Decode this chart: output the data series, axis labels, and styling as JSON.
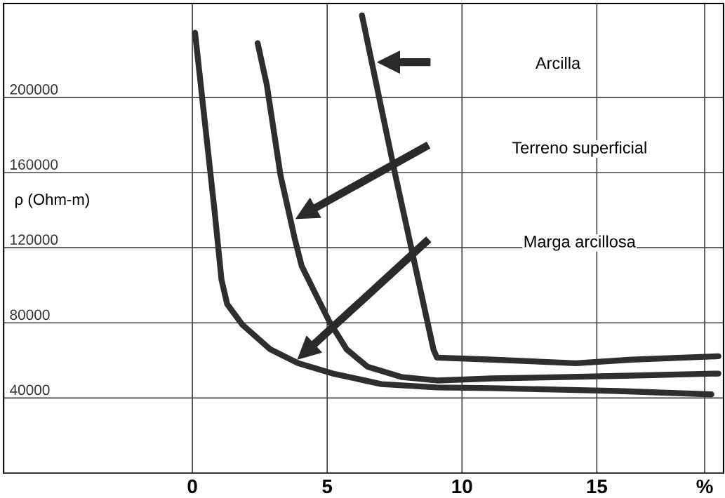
{
  "chart_data": {
    "type": "line",
    "ylabel": "ρ (Ohm-m)",
    "xlim": [
      -7,
      19.7
    ],
    "ylim": [
      0,
      250000
    ],
    "xticks": [
      0,
      5,
      10,
      15,
      {
        "value": 19,
        "label": "%"
      }
    ],
    "yticks": [
      40000,
      80000,
      120000,
      160000,
      200000
    ],
    "grid": true,
    "legend": false,
    "marker": "none",
    "line_style": "solid",
    "series": [
      {
        "color": "#2e2e2e",
        "x": [
          0.1,
          0.82,
          1.08,
          1.29,
          1.86,
          2.89,
          3.92,
          5.21,
          7.01,
          9.07,
          11.13,
          13.71,
          15.79,
          19.25
        ],
        "values": [
          234400,
          140000,
          103000,
          90000,
          78900,
          65900,
          58500,
          53000,
          47400,
          45600,
          45200,
          44400,
          43700,
          41900
        ]
      },
      {
        "color": "#2e2e2e",
        "x": [
          2.42,
          2.76,
          3.27,
          3.79,
          4.05,
          4.56,
          5.08,
          5.72,
          6.49,
          7.78,
          9.07,
          11.13,
          13.71,
          16.29,
          19.51
        ],
        "values": [
          228900,
          206700,
          158500,
          125200,
          110400,
          95600,
          80700,
          65900,
          56700,
          51100,
          49300,
          50400,
          51100,
          51900,
          53000
        ]
      },
      {
        "color": "#2e2e2e",
        "x": [
          6.29,
          7.53,
          8.94,
          9.07,
          11.13,
          14.23,
          16.29,
          19.51
        ],
        "values": [
          243700,
          158500,
          65900,
          61500,
          60400,
          58500,
          60400,
          62200
        ]
      }
    ],
    "annotations": [
      "Arcilla",
      "Terreno superficial",
      "Marga arcillosa"
    ]
  }
}
